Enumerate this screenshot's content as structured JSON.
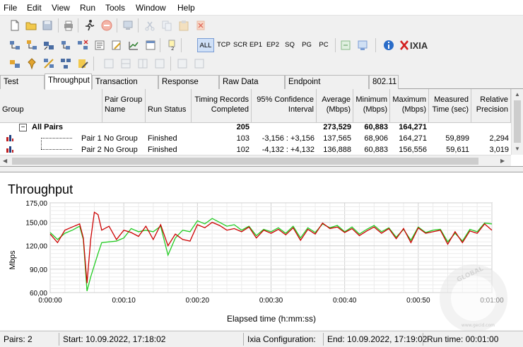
{
  "menu": [
    "File",
    "Edit",
    "View",
    "Run",
    "Tools",
    "Window",
    "Help"
  ],
  "protocol_buttons": [
    "ALL",
    "TCP",
    "SCR",
    "EP1",
    "EP2",
    "SQ",
    "PG",
    "PC"
  ],
  "brand": "IXIA",
  "tabs": [
    "Test Setup",
    "Throughput",
    "Transaction Rate",
    "Response Time",
    "Raw Data Totals",
    "Endpoint Configuration",
    "802.11"
  ],
  "table": {
    "headers": {
      "group": "Group",
      "pair_group_name": "Pair Group Name",
      "run_status": "Run Status",
      "timing_records": "Timing Records Completed",
      "confidence": "95% Confidence Interval",
      "average": "Average (Mbps)",
      "minimum": "Minimum (Mbps)",
      "maximum": "Maximum (Mbps)",
      "measured_time": "Measured Time (sec)",
      "relative_precision": "Relative Precision"
    },
    "summary": {
      "expander": "−",
      "label": "All Pairs",
      "timing_records": "205",
      "average": "273,529",
      "minimum": "60,883",
      "maximum": "164,271"
    },
    "rows": [
      {
        "pair": "Pair 1",
        "pair_group": "No Group",
        "status": "Finished",
        "records": "103",
        "ci": "-3,156 : +3,156",
        "avg": "137,565",
        "min": "68,906",
        "max": "164,271",
        "time": "59,899",
        "precision": "2,294"
      },
      {
        "pair": "Pair 2",
        "pair_group": "No Group",
        "status": "Finished",
        "records": "102",
        "ci": "-4,132 : +4,132",
        "avg": "136,888",
        "min": "60,883",
        "max": "156,556",
        "time": "59,611",
        "precision": "3,019"
      }
    ]
  },
  "chart_data": {
    "type": "line",
    "title": "Throughput",
    "xlabel": "Elapsed time (h:mm:ss)",
    "ylabel": "Mbps",
    "ylim": [
      60,
      175
    ],
    "xlim": [
      0,
      60
    ],
    "yticks": [
      "60,00",
      "90,00",
      "120,00",
      "150,00",
      "175,00"
    ],
    "ytick_values": [
      60,
      90,
      120,
      150,
      175
    ],
    "xticks": [
      "0:00:00",
      "0:00:10",
      "0:00:20",
      "0:00:30",
      "0:00:40",
      "0:00:50",
      "0:01:00"
    ],
    "grid": true,
    "series": [
      {
        "color": "#cc0000",
        "x": [
          0,
          1,
          2,
          3,
          4,
          4.5,
          5,
          5.5,
          6,
          6.5,
          7,
          8,
          9,
          10,
          11,
          12,
          13,
          14,
          15,
          16,
          17,
          18,
          19,
          20,
          21,
          22,
          23,
          24,
          25,
          26,
          27,
          28,
          29,
          30,
          31,
          32,
          33,
          34,
          35,
          36,
          37,
          38,
          39,
          40,
          41,
          42,
          43,
          44,
          45,
          46,
          47,
          48,
          49,
          50,
          51,
          52,
          53,
          54,
          55,
          56,
          57,
          58,
          59,
          60
        ],
        "y": [
          135,
          124,
          140,
          144,
          148,
          130,
          72,
          128,
          163,
          160,
          140,
          145,
          128,
          140,
          137,
          132,
          145,
          128,
          147,
          120,
          135,
          128,
          126,
          147,
          143,
          150,
          146,
          140,
          142,
          138,
          144,
          130,
          140,
          136,
          141,
          134,
          143,
          127,
          141,
          135,
          149,
          142,
          144,
          137,
          142,
          133,
          139,
          144,
          136,
          142,
          129,
          142,
          124,
          143,
          136,
          138,
          140,
          122,
          138,
          124,
          139,
          136,
          148,
          140
        ]
      },
      {
        "color": "#22cc22",
        "x": [
          0,
          1,
          2,
          3,
          4,
          4.5,
          5,
          5.5,
          6,
          6.5,
          7,
          8,
          9,
          10,
          11,
          12,
          13,
          14,
          15,
          16,
          17,
          18,
          19,
          20,
          21,
          22,
          23,
          24,
          25,
          26,
          27,
          28,
          29,
          30,
          31,
          32,
          33,
          34,
          35,
          36,
          37,
          38,
          39,
          40,
          41,
          42,
          43,
          44,
          45,
          46,
          47,
          48,
          49,
          50,
          51,
          52,
          53,
          54,
          55,
          56,
          57,
          58,
          59,
          60
        ],
        "y": [
          137,
          128,
          136,
          140,
          145,
          128,
          62,
          80,
          95,
          110,
          124,
          125,
          126,
          130,
          142,
          138,
          140,
          138,
          145,
          108,
          130,
          140,
          138,
          152,
          148,
          155,
          150,
          145,
          147,
          140,
          145,
          133,
          141,
          138,
          143,
          136,
          145,
          130,
          143,
          137,
          148,
          143,
          146,
          138,
          144,
          135,
          141,
          146,
          138,
          143,
          131,
          141,
          127,
          144,
          137,
          140,
          141,
          125,
          136,
          126,
          141,
          138,
          149,
          148
        ]
      }
    ]
  },
  "watermark": {
    "brand": "GLOBAL",
    "site": "www.gecid.com"
  },
  "status": {
    "pairs": "Pairs: 2",
    "start": "Start: 10.09.2022, 17:18:02",
    "config": "Ixia Configuration:",
    "end": "End: 10.09.2022, 17:19:02",
    "runtime": "Run time: 00:01:00"
  }
}
